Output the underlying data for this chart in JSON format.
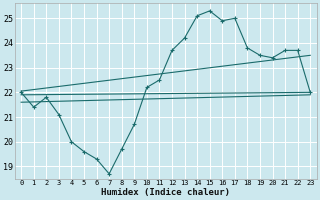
{
  "title": "",
  "xlabel": "Humidex (Indice chaleur)",
  "bg_color": "#cce8ee",
  "grid_color": "#ffffff",
  "line_color": "#1a6b6b",
  "xlim": [
    -0.5,
    23.5
  ],
  "ylim": [
    18.5,
    25.6
  ],
  "xticks": [
    0,
    1,
    2,
    3,
    4,
    5,
    6,
    7,
    8,
    9,
    10,
    11,
    12,
    13,
    14,
    15,
    16,
    17,
    18,
    19,
    20,
    21,
    22,
    23
  ],
  "yticks": [
    19,
    20,
    21,
    22,
    23,
    24,
    25
  ],
  "line1_x": [
    0,
    1,
    2,
    3,
    4,
    5,
    6,
    7,
    8,
    9,
    10,
    11,
    12,
    13,
    14,
    15,
    16,
    17,
    18,
    19,
    20,
    21,
    22,
    23
  ],
  "line1_y": [
    22.0,
    21.4,
    21.8,
    21.1,
    20.0,
    19.6,
    19.3,
    18.7,
    19.7,
    20.7,
    22.2,
    22.5,
    23.7,
    24.2,
    25.1,
    25.3,
    24.9,
    25.0,
    23.8,
    23.5,
    23.4,
    23.7,
    23.7,
    22.0
  ],
  "line2_x": [
    0,
    23
  ],
  "line2_y": [
    21.9,
    22.0
  ],
  "line3_x": [
    0,
    23
  ],
  "line3_y": [
    22.05,
    23.5
  ],
  "line4_x": [
    0,
    23
  ],
  "line4_y": [
    21.6,
    21.9
  ]
}
